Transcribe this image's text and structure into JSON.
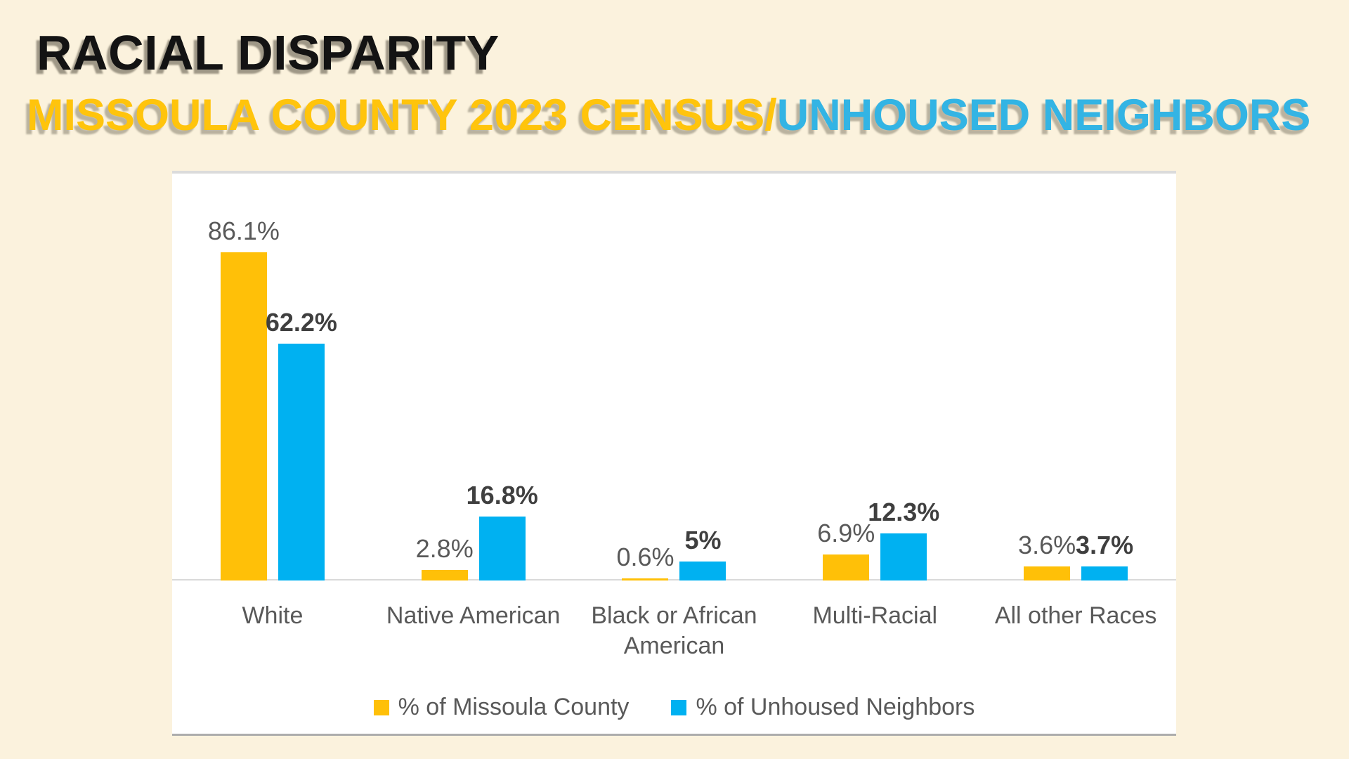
{
  "page": {
    "background_color": "#FBF2DD",
    "panel_background": "#FFFFFF"
  },
  "header": {
    "title": "RACIAL DISPARITY",
    "title_color": "#131313",
    "subtitle_census": "MISSOULA COUNTY 2023 CENSUS",
    "subtitle_slash": "/",
    "subtitle_unhoused": "UNHOUSED NEIGHBORS",
    "subtitle_census_color": "#FFC40C",
    "subtitle_unhoused_color": "#33B4E4"
  },
  "chart_data": {
    "type": "bar",
    "title": "",
    "xlabel": "",
    "ylabel": "",
    "categories": [
      "White",
      "Native American",
      "Black or African American",
      "Multi-Racial",
      "All other Races"
    ],
    "series": [
      {
        "name": "% of Missoula County",
        "key": "missoula-county",
        "color": "#FFC008",
        "values": [
          86.1,
          2.8,
          0.6,
          6.9,
          3.6
        ],
        "data_labels": [
          "86.1%",
          "2.8%",
          "0.6%",
          "6.9%",
          "3.6%"
        ],
        "label_style": "regular"
      },
      {
        "name": "% of Unhoused Neighbors",
        "key": "unhoused-neighbors",
        "color": "#00B1F1",
        "values": [
          62.2,
          16.8,
          5,
          12.3,
          3.7
        ],
        "data_labels": [
          "62.2%",
          "16.8%",
          "5%",
          "12.3%",
          "3.7%"
        ],
        "label_style": "bold"
      }
    ],
    "value_suffix": "%",
    "ylim": [
      0,
      107
    ],
    "grid": false,
    "data_labels": true,
    "legend_position": "bottom-center",
    "axis_line_color": "#D9D9D9"
  }
}
